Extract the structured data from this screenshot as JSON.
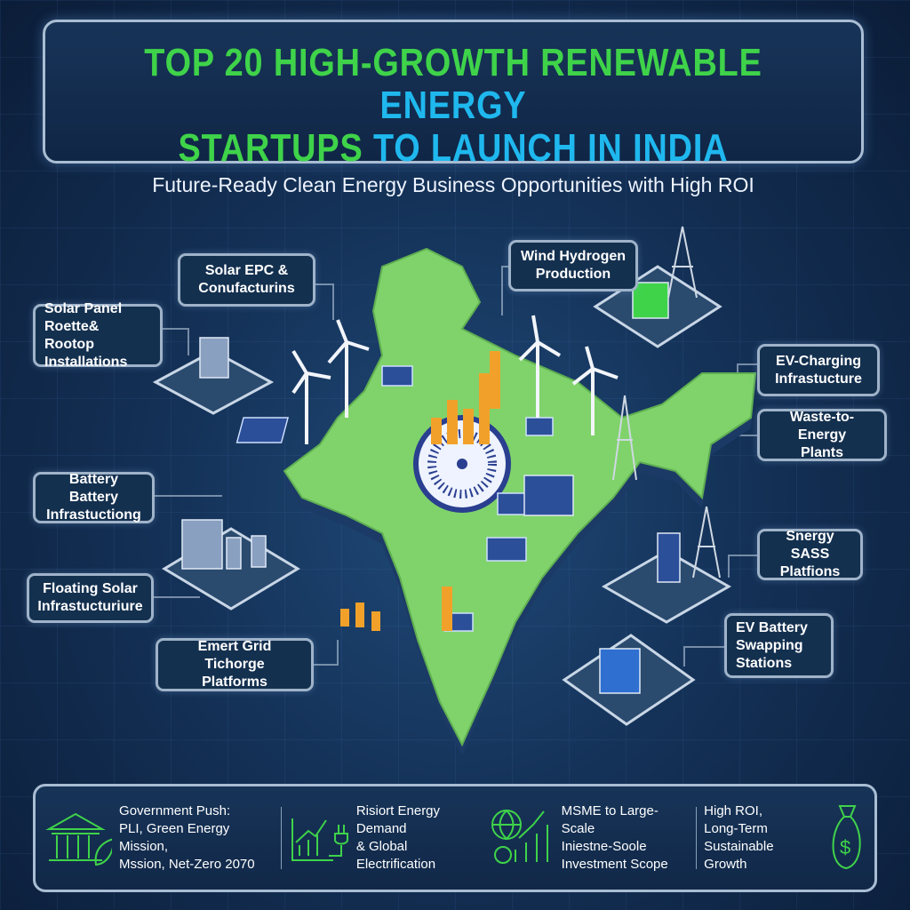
{
  "header": {
    "title_line1_green": "TOP 20 HIGH-GROWTH RENEWABLE",
    "title_line1_cyan": "ENERGY",
    "title_line2_green": "STARTUPS",
    "title_line2_cyan": "TO LAUNCH IN INDIA",
    "subtitle": "Future-Ready Clean Energy Business Opportunities with High ROI"
  },
  "colors": {
    "green": "#3fd34a",
    "cyan": "#1fb8ee",
    "map": "#7fd36a",
    "background": "#143157"
  },
  "labels": [
    {
      "id": "solar-epc",
      "text": "Solar EPC &\nConufacturins"
    },
    {
      "id": "solar-panel",
      "text": "Solar Panel\nRoette& Rootop\nInstallations"
    },
    {
      "id": "wind-hydrogen",
      "text": "Wind Hydrogen\nProduction"
    },
    {
      "id": "ev-charging",
      "text": "EV-Charging\nInfrastucture"
    },
    {
      "id": "waste-to-energy",
      "text": "Waste-to-Energy\nPlants"
    },
    {
      "id": "battery",
      "text": "Battery Battery\nInfrastuctiong"
    },
    {
      "id": "floating-solar",
      "text": "Floating Solar\nInfrastucturiure"
    },
    {
      "id": "smart-grid",
      "text": "Emert Grid Tichorge\nPlatforms"
    },
    {
      "id": "energy-saas",
      "text": "Snergy SASS\nPlatfions"
    },
    {
      "id": "ev-battery-swapping",
      "text": "EV Battery\nSwapping\nStations"
    }
  ],
  "footer": [
    {
      "icon": "government-building-leaf-icon",
      "text": "Government Push:\nPLI, Green Energy Mission,\nMssion, Net-Zero 2070"
    },
    {
      "icon": "growth-chart-plug-icon",
      "text": "Risiort Energy Demand\n& Global Electrification"
    },
    {
      "icon": "globe-gear-chart-icon",
      "text": "MSME to Large-Scale\nIniestne-Soole\nInvestment Scope"
    },
    {
      "icon": "money-bag-icon",
      "text": "High ROI,\nLong-Term\nSustainable Growth"
    }
  ]
}
